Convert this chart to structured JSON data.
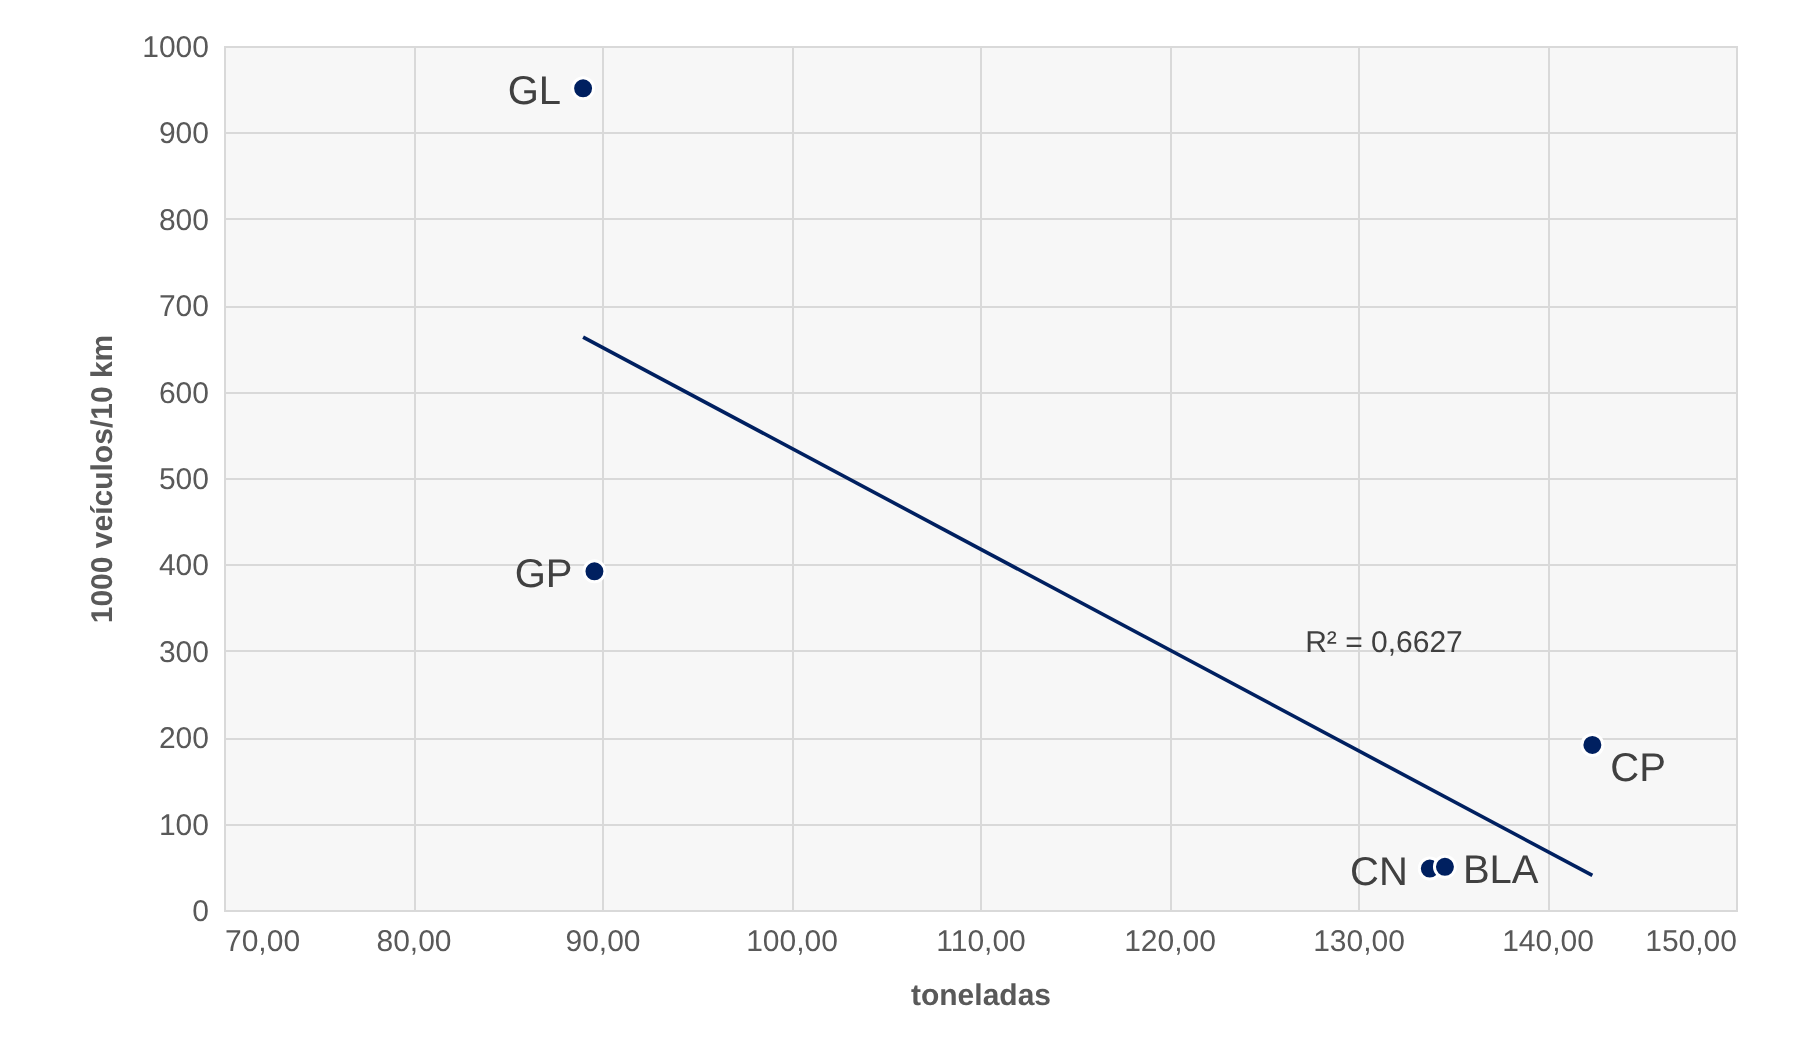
{
  "chart_data": {
    "type": "scatter",
    "xlabel": "toneladas",
    "ylabel": "1000 veículos/10 km",
    "xlim": [
      70,
      150
    ],
    "xticks": [
      {
        "value": 70,
        "label": "70,00"
      },
      {
        "value": 80,
        "label": "80,00"
      },
      {
        "value": 90,
        "label": "90,00"
      },
      {
        "value": 100,
        "label": "100,00"
      },
      {
        "value": 110,
        "label": "110,00"
      },
      {
        "value": 120,
        "label": "120,00"
      },
      {
        "value": 130,
        "label": "130,00"
      },
      {
        "value": 140,
        "label": "140,00"
      },
      {
        "value": 150,
        "label": "150,00"
      }
    ],
    "ylim": [
      0,
      1000
    ],
    "yticks": [
      0,
      100,
      200,
      300,
      400,
      500,
      600,
      700,
      800,
      900,
      {
        "value": 1000,
        "label": "1000"
      }
    ],
    "grid": true,
    "series": [
      {
        "color": "#002060",
        "marker": "circle",
        "x": [
          89.0,
          89.6,
          142.4,
          133.8,
          134.6
        ],
        "values": [
          951,
          392,
          191,
          48,
          50
        ]
      },
      {
        "type": "line",
        "color": "#002060",
        "x": [
          89.0,
          142.4
        ],
        "values": [
          663,
          40
        ]
      }
    ],
    "annotations": [
      {
        "text": "GL",
        "x": 89.0,
        "y": 951
      },
      {
        "text": "GP",
        "x": 89.6,
        "y": 392
      },
      {
        "text": "CP",
        "x": 142.4,
        "y": 191
      },
      {
        "text": "CN",
        "x": 133.8,
        "y": 48
      },
      {
        "text": "BLA",
        "x": 134.6,
        "y": 50
      },
      "R² = 0,6627"
    ]
  }
}
